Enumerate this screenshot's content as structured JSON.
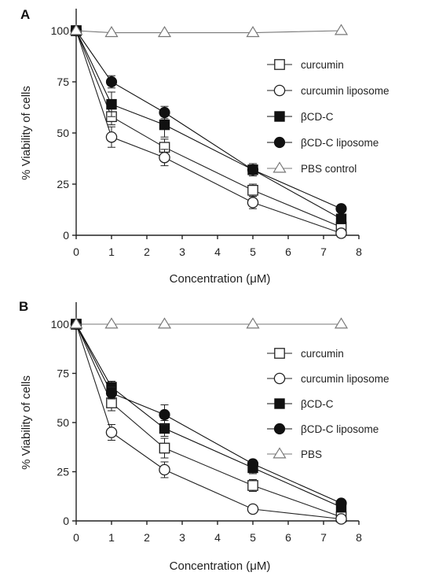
{
  "chart_data": [
    {
      "panel_label": "A",
      "type": "line",
      "xlabel": "Concentration (μM)",
      "ylabel": "% Viability of cells",
      "xlim": [
        0,
        8
      ],
      "ylim": [
        0,
        100
      ],
      "x_ticks": [
        "0",
        "1",
        "2",
        "3",
        "4",
        "5",
        "6",
        "7",
        "8"
      ],
      "y_ticks": [
        "0",
        "25",
        "50",
        "75",
        "100"
      ],
      "x": [
        0,
        1,
        2.5,
        5,
        7.5
      ],
      "legend_position": "right",
      "series": [
        {
          "name": "curcumin",
          "marker": "open-square",
          "color": "#222222",
          "values": [
            100,
            58,
            43,
            22,
            4
          ],
          "errors": [
            0,
            4,
            4,
            3,
            2
          ]
        },
        {
          "name": "curcumin liposome",
          "marker": "open-circle",
          "color": "#222222",
          "values": [
            100,
            48,
            38,
            16,
            1
          ],
          "errors": [
            0,
            5,
            4,
            3,
            2
          ]
        },
        {
          "name": "βCD-C",
          "marker": "filled-square",
          "color": "#111111",
          "values": [
            100,
            64,
            54,
            32,
            8
          ],
          "errors": [
            0,
            6,
            6,
            3,
            2
          ]
        },
        {
          "name": "βCD-C liposome",
          "marker": "filled-circle",
          "color": "#111111",
          "values": [
            100,
            75,
            60,
            32,
            13
          ],
          "errors": [
            0,
            3,
            3,
            2,
            1
          ]
        },
        {
          "name": "PBS control",
          "marker": "open-triangle",
          "color": "#777777",
          "values": [
            100,
            99,
            99,
            99,
            100
          ],
          "errors": [
            0,
            0,
            0,
            0,
            0
          ]
        }
      ]
    },
    {
      "panel_label": "B",
      "type": "line",
      "xlabel": "Concentration (μM)",
      "ylabel": "% Viability of cells",
      "xlim": [
        0,
        8
      ],
      "ylim": [
        0,
        100
      ],
      "x_ticks": [
        "0",
        "1",
        "2",
        "3",
        "4",
        "5",
        "6",
        "7",
        "8"
      ],
      "y_ticks": [
        "0",
        "25",
        "50",
        "75",
        "100"
      ],
      "x": [
        0,
        1,
        2.5,
        5,
        7.5
      ],
      "legend_position": "right",
      "series": [
        {
          "name": "curcumin",
          "marker": "open-square",
          "color": "#222222",
          "values": [
            100,
            60,
            37,
            18,
            2
          ],
          "errors": [
            0,
            4,
            5,
            3,
            2
          ]
        },
        {
          "name": "curcumin liposome",
          "marker": "open-circle",
          "color": "#222222",
          "values": [
            100,
            45,
            26,
            6,
            1
          ],
          "errors": [
            0,
            4,
            4,
            2,
            1
          ]
        },
        {
          "name": "βCD-C",
          "marker": "filled-square",
          "color": "#111111",
          "values": [
            100,
            68,
            47,
            27,
            7
          ],
          "errors": [
            0,
            3,
            4,
            3,
            2
          ]
        },
        {
          "name": "βCD-C liposome",
          "marker": "filled-circle",
          "color": "#111111",
          "values": [
            100,
            65,
            54,
            29,
            9
          ],
          "errors": [
            0,
            3,
            5,
            2,
            1
          ]
        },
        {
          "name": "PBS",
          "marker": "open-triangle",
          "color": "#777777",
          "values": [
            100,
            100,
            100,
            100,
            100
          ],
          "errors": [
            0,
            0,
            0,
            0,
            0
          ]
        }
      ]
    }
  ]
}
